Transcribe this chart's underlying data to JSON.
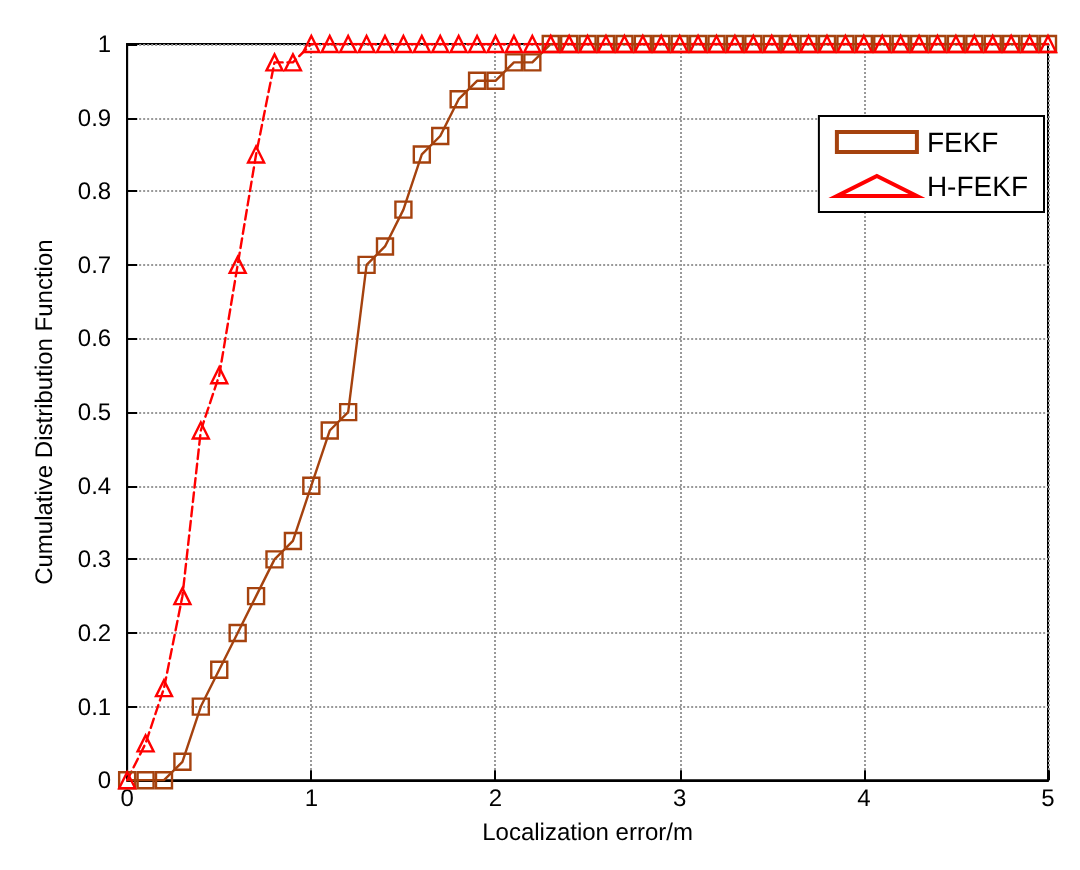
{
  "chart_data": {
    "type": "line",
    "xlabel": "Localization error/m",
    "ylabel": "Cumulative Distribution Function",
    "x": [
      0,
      0.1,
      0.2,
      0.3,
      0.4,
      0.5,
      0.6,
      0.7,
      0.8,
      0.9,
      1,
      1.1,
      1.2,
      1.3,
      1.4,
      1.5,
      1.6,
      1.7,
      1.8,
      1.9,
      2,
      2.1,
      2.2,
      2.3,
      2.4,
      2.5,
      2.6,
      2.7,
      2.8,
      2.9,
      3,
      3.1,
      3.2,
      3.3,
      3.4,
      3.5,
      3.6,
      3.7,
      3.8,
      3.9,
      4,
      4.1,
      4.2,
      4.3,
      4.4,
      4.5,
      4.6,
      4.7,
      4.8,
      4.9,
      5
    ],
    "series": [
      {
        "name": "FEKF",
        "color": "#a5420e",
        "marker": "square",
        "line_style": "solid",
        "values": [
          0,
          0,
          0,
          0.025,
          0.1,
          0.15,
          0.2,
          0.25,
          0.3,
          0.325,
          0.4,
          0.475,
          0.5,
          0.7,
          0.725,
          0.775,
          0.85,
          0.875,
          0.925,
          0.95,
          0.95,
          0.975,
          0.975,
          1,
          1,
          1,
          1,
          1,
          1,
          1,
          1,
          1,
          1,
          1,
          1,
          1,
          1,
          1,
          1,
          1,
          1,
          1,
          1,
          1,
          1,
          1,
          1,
          1,
          1,
          1,
          1
        ]
      },
      {
        "name": "H-FEKF",
        "color": "#ff0000",
        "marker": "triangle",
        "line_style": "dashed",
        "values": [
          0,
          0.05,
          0.125,
          0.25,
          0.475,
          0.55,
          0.7,
          0.85,
          0.975,
          0.975,
          1,
          1,
          1,
          1,
          1,
          1,
          1,
          1,
          1,
          1,
          1,
          1,
          1,
          1,
          1,
          1,
          1,
          1,
          1,
          1,
          1,
          1,
          1,
          1,
          1,
          1,
          1,
          1,
          1,
          1,
          1,
          1,
          1,
          1,
          1,
          1,
          1,
          1,
          1,
          1,
          1
        ]
      }
    ],
    "xlim": [
      0,
      5
    ],
    "xticks": [
      0,
      1,
      2,
      3,
      4,
      5
    ],
    "ylim": [
      0,
      1
    ],
    "yticks": [
      0,
      0.1,
      0.2,
      0.3,
      0.4,
      0.5,
      0.6,
      0.7,
      0.8,
      0.9,
      1
    ],
    "grid": true,
    "legend": "top right"
  }
}
